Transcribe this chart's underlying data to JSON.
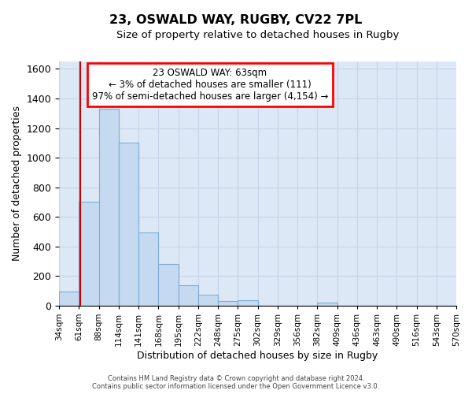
{
  "title_line1": "23, OSWALD WAY, RUGBY, CV22 7PL",
  "title_line2": "Size of property relative to detached houses in Rugby",
  "xlabel": "Distribution of detached houses by size in Rugby",
  "ylabel": "Number of detached properties",
  "bar_values": [
    95,
    700,
    1330,
    1100,
    495,
    280,
    140,
    75,
    32,
    35,
    0,
    0,
    0,
    18,
    0,
    0,
    0,
    0,
    0,
    0
  ],
  "tick_labels": [
    "34sqm",
    "61sqm",
    "88sqm",
    "114sqm",
    "141sqm",
    "168sqm",
    "195sqm",
    "222sqm",
    "248sqm",
    "275sqm",
    "302sqm",
    "329sqm",
    "356sqm",
    "382sqm",
    "409sqm",
    "436sqm",
    "463sqm",
    "490sqm",
    "516sqm",
    "543sqm",
    "570sqm"
  ],
  "bar_color": "#c5d9f0",
  "bar_edge_color": "#7bafd4",
  "annotation_line1": "23 OSWALD WAY: 63sqm",
  "annotation_line2": "← 3% of detached houses are smaller (111)",
  "annotation_line3": "97% of semi-detached houses are larger (4,154) →",
  "annotation_box_color": "white",
  "annotation_box_edge": "red",
  "red_line_color": "#cc0000",
  "ylim": [
    0,
    1650
  ],
  "yticks": [
    0,
    200,
    400,
    600,
    800,
    1000,
    1200,
    1400,
    1600
  ],
  "grid_color": "#c8d4e8",
  "bg_color": "#dce8f5",
  "footer_line1": "Contains HM Land Registry data © Crown copyright and database right 2024.",
  "footer_line2": "Contains public sector information licensed under the Open Government Licence v3.0."
}
